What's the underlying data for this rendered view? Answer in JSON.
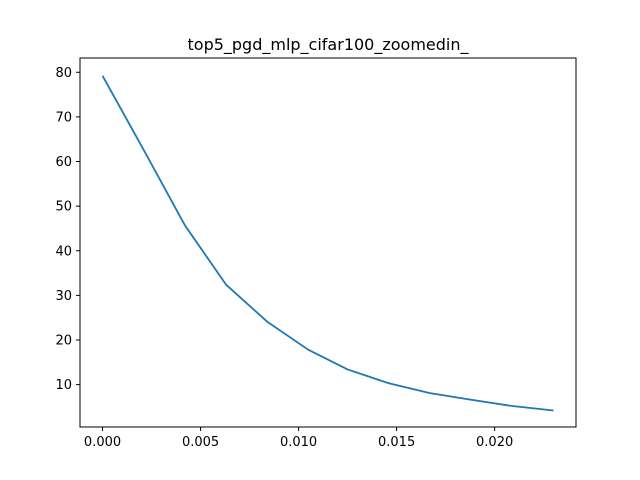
{
  "chart_data": {
    "type": "line",
    "title": "top5_pgd_mlp_cifar100_zoomedin_",
    "xlabel": "",
    "ylabel": "",
    "xlim": [
      -0.00115,
      0.02415
    ],
    "ylim": [
      0.5,
      83.2
    ],
    "x_ticks": [
      0.0,
      0.005,
      0.01,
      0.015,
      0.02
    ],
    "x_tick_labels": [
      "0.000",
      "0.005",
      "0.010",
      "0.015",
      "0.020"
    ],
    "y_ticks": [
      10,
      20,
      30,
      40,
      50,
      60,
      70,
      80
    ],
    "y_tick_labels": [
      "10",
      "20",
      "30",
      "40",
      "50",
      "60",
      "70",
      "80"
    ],
    "grid": false,
    "series": [
      {
        "color": "#1f77b4",
        "x": [
          0.0,
          0.0021,
          0.0042,
          0.0063,
          0.0084,
          0.0105,
          0.0125,
          0.0146,
          0.0167,
          0.0188,
          0.0209,
          0.023
        ],
        "y": [
          79.2,
          62.6,
          45.7,
          32.4,
          24.1,
          17.8,
          13.4,
          10.3,
          8.1,
          6.6,
          5.2,
          4.2
        ]
      }
    ]
  }
}
